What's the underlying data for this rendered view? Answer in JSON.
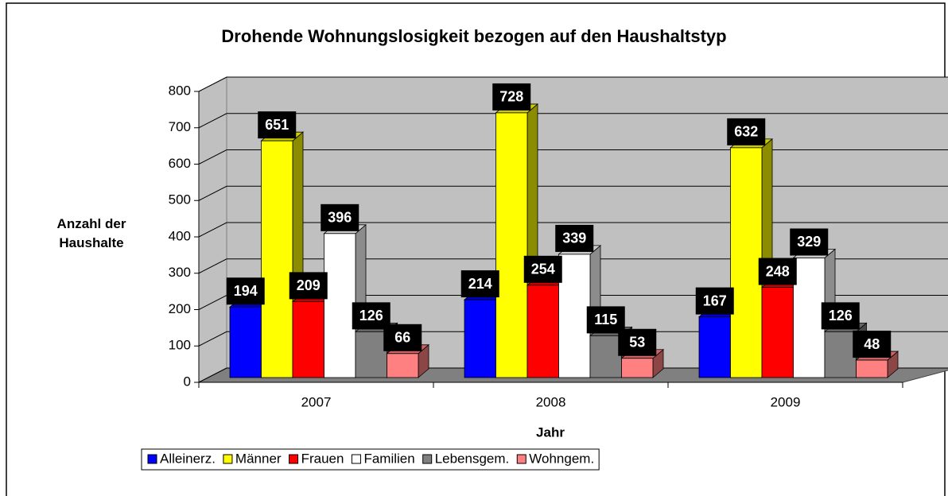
{
  "chart_data": {
    "type": "bar3d",
    "title": "Drohende Wohnungslosigkeit bezogen auf den Haushaltstyp",
    "xlabel": "Jahr",
    "ylabel": "Anzahl der Haushalte",
    "categories": [
      "2007",
      "2008",
      "2009"
    ],
    "series": [
      {
        "name": "Alleinerz.",
        "color": "#0000ff",
        "values": [
          194,
          214,
          167
        ]
      },
      {
        "name": "Männer",
        "color": "#ffff00",
        "values": [
          651,
          728,
          632
        ]
      },
      {
        "name": "Frauen",
        "color": "#ff0000",
        "values": [
          209,
          254,
          248
        ]
      },
      {
        "name": "Familien",
        "color": "#ffffff",
        "values": [
          396,
          339,
          329
        ]
      },
      {
        "name": "Lebensgem.",
        "color": "#808080",
        "values": [
          126,
          115,
          126
        ]
      },
      {
        "name": "Wohngem.",
        "color": "#ff8080",
        "values": [
          66,
          53,
          48
        ]
      }
    ],
    "ylim": [
      0,
      800
    ],
    "yticks": [
      0,
      100,
      200,
      300,
      400,
      500,
      600,
      700,
      800
    ],
    "grid": true,
    "legend": "bottom"
  }
}
